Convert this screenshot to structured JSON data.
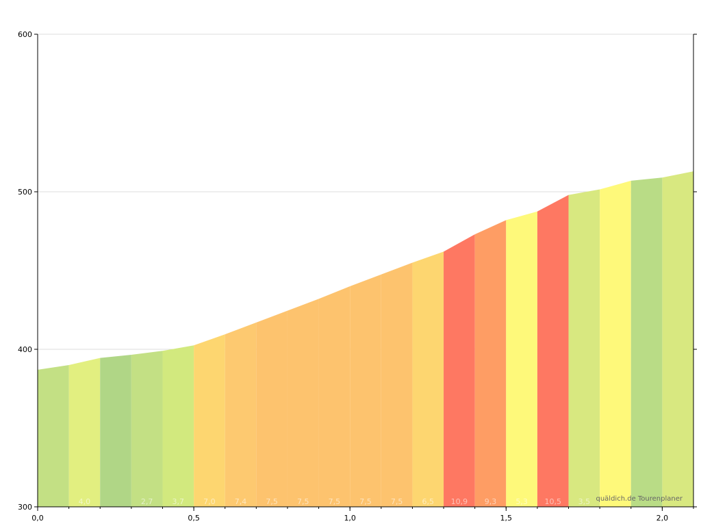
{
  "chart_data": {
    "type": "area",
    "title": "",
    "xlabel": "",
    "ylabel": "",
    "xlim": [
      0,
      2.1
    ],
    "ylim": [
      300,
      600
    ],
    "x_ticks": [
      0,
      0.5,
      1.0,
      1.5,
      2.0
    ],
    "x_tick_labels": [
      "0,0",
      "0,5",
      "1,0",
      "1,5",
      "2,0"
    ],
    "y_ticks": [
      300,
      400,
      500,
      600
    ],
    "y_tick_labels": [
      "300",
      "400",
      "500",
      "600"
    ],
    "grid": true,
    "profile_x": [
      0,
      0.1,
      0.2,
      0.3,
      0.4,
      0.5,
      0.6,
      0.7,
      0.8,
      0.9,
      1.0,
      1.1,
      1.2,
      1.3,
      1.4,
      1.5,
      1.6,
      1.7,
      1.8,
      1.9,
      2.0,
      2.1
    ],
    "elevation": [
      387,
      390,
      394.5,
      396.5,
      399,
      402.5,
      409.5,
      417,
      424.5,
      432,
      440,
      447.5,
      455,
      462,
      473,
      482,
      487.5,
      498,
      501.5,
      507,
      509,
      513
    ],
    "segment_colors": [
      "#c3e084",
      "#e2ef80",
      "#b0d686",
      "#c3e084",
      "#d2e97e",
      "#fdd670",
      "#fdc970",
      "#fdc36e",
      "#fdc36e",
      "#fdc36e",
      "#fdc36e",
      "#fdc36e",
      "#fdd670",
      "#fe7862",
      "#fe9d64",
      "#fef97a",
      "#fe7862",
      "#d8e880",
      "#fef97a",
      "#b9dc86",
      "#d8e880"
    ],
    "segment_labels": [
      "",
      "4,0",
      "",
      "2,7",
      "3,7",
      "7,0",
      "7,4",
      "7,5",
      "7,5",
      "7,5",
      "7,5",
      "7,5",
      "6,5",
      "10,9",
      "9,3",
      "5,3",
      "10,5",
      "3,5",
      "",
      "",
      ""
    ]
  },
  "credit": "quäldich.de Tourenplaner"
}
